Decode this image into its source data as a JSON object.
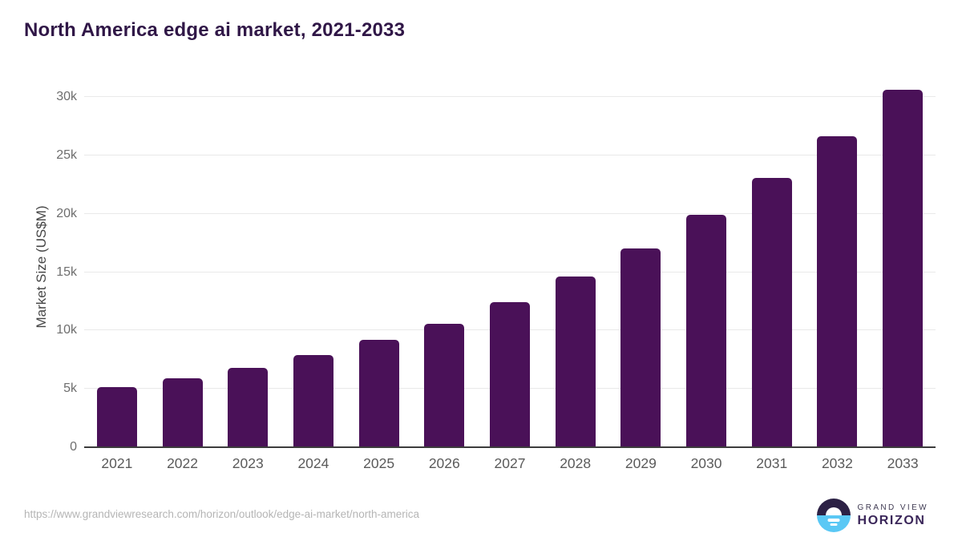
{
  "title": "North America edge ai market, 2021-2033",
  "chart_data": {
    "type": "bar",
    "title": "North America edge ai market, 2021-2033",
    "xlabel": "",
    "ylabel": "Market Size (US$M)",
    "categories": [
      "2021",
      "2022",
      "2023",
      "2024",
      "2025",
      "2026",
      "2027",
      "2028",
      "2029",
      "2030",
      "2031",
      "2032",
      "2033"
    ],
    "values": [
      5150,
      5900,
      6800,
      7900,
      9200,
      10600,
      12450,
      14600,
      17050,
      19900,
      23100,
      26650,
      30600
    ],
    "unit": "US$M",
    "ylim": [
      0,
      31100
    ],
    "yticks": [
      {
        "value": 0,
        "label": "0"
      },
      {
        "value": 5000,
        "label": "5k"
      },
      {
        "value": 10000,
        "label": "10k"
      },
      {
        "value": 15000,
        "label": "15k"
      },
      {
        "value": 20000,
        "label": "20k"
      },
      {
        "value": 25000,
        "label": "25k"
      },
      {
        "value": 30000,
        "label": "30k"
      }
    ],
    "grid": "horizontal",
    "legend": "none"
  },
  "colors": {
    "bar": "#4a1158",
    "title_text": "#301747",
    "gridline": "#e9e9e9",
    "axis_line": "#3c3c3c",
    "logo_top": "#2c2145",
    "logo_bottom": "#5ac8f5"
  },
  "footer": {
    "url": "https://www.grandviewresearch.com/horizon/outlook/edge-ai-market/north-america",
    "logo": {
      "line1": "GRAND VIEW",
      "line2": "HORIZON"
    }
  }
}
